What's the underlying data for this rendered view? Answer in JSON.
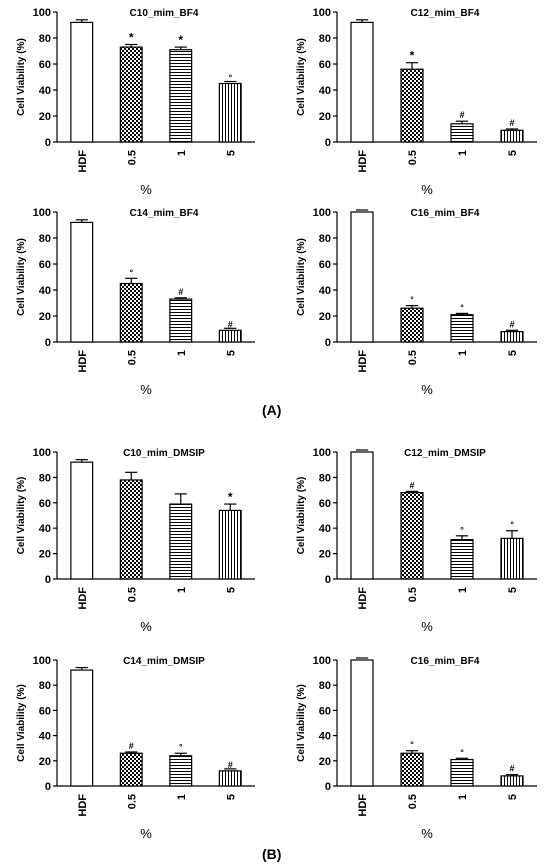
{
  "panel_labels": {
    "a": "(A)",
    "b": "(B)"
  },
  "chart_data": [
    {
      "type": "bar",
      "title": "C10_mim_BF4",
      "xlabel": "%",
      "ylabel": "Cell Viability (%)",
      "categories": [
        "HDF",
        "0.5",
        "1",
        "5"
      ],
      "values": [
        92,
        73,
        71,
        45
      ],
      "errors": [
        2,
        2,
        2,
        0
      ],
      "annotations": [
        "",
        "*",
        "*",
        "°"
      ],
      "ylim": [
        0,
        100
      ],
      "yticks": [
        0,
        20,
        40,
        60,
        80,
        100
      ],
      "patterns": [
        "none",
        "checker",
        "hlines",
        "vlines"
      ]
    },
    {
      "type": "bar",
      "title": "C12_mim_BF4",
      "xlabel": "%",
      "ylabel": "Cell Viability (%)",
      "categories": [
        "HDF",
        "0.5",
        "1",
        "5"
      ],
      "values": [
        92,
        56,
        14,
        9
      ],
      "errors": [
        2,
        5,
        2,
        1
      ],
      "annotations": [
        "",
        "*",
        "#",
        "#"
      ],
      "ylim": [
        0,
        100
      ],
      "yticks": [
        0,
        20,
        40,
        60,
        80,
        100
      ],
      "patterns": [
        "none",
        "checker",
        "hlines",
        "vlines"
      ]
    },
    {
      "type": "bar",
      "title": "C14_mim_BF4",
      "xlabel": "%",
      "ylabel": "Cell Viability (%)",
      "categories": [
        "HDF",
        "0.5",
        "1",
        "5"
      ],
      "values": [
        92,
        45,
        33,
        9
      ],
      "errors": [
        2,
        4,
        1,
        0
      ],
      "annotations": [
        "",
        "°",
        "#",
        "#"
      ],
      "ylim": [
        0,
        100
      ],
      "yticks": [
        0,
        20,
        40,
        60,
        80,
        100
      ],
      "patterns": [
        "none",
        "checker",
        "hlines",
        "vlines"
      ]
    },
    {
      "type": "bar",
      "title": "C16_mim_BF4",
      "xlabel": "%",
      "ylabel": "Cell Viability (%)",
      "categories": [
        "HDF",
        "0.5",
        "1",
        "5"
      ],
      "values": [
        100,
        26,
        21,
        8
      ],
      "errors": [
        0,
        2,
        1,
        1
      ],
      "annotations": [
        "",
        "°",
        "°",
        "#"
      ],
      "ylim": [
        0,
        100
      ],
      "yticks": [
        0,
        20,
        40,
        60,
        80,
        100
      ],
      "patterns": [
        "none",
        "checker",
        "hlines",
        "vlines"
      ]
    },
    {
      "type": "bar",
      "title": "C10_mim_DMSIP",
      "xlabel": "%",
      "ylabel": "Cell Viability (%)",
      "categories": [
        "HDF",
        "0.5",
        "1",
        "5"
      ],
      "values": [
        92,
        78,
        59,
        54
      ],
      "errors": [
        2,
        6,
        8,
        5
      ],
      "annotations": [
        "",
        "",
        "",
        "*"
      ],
      "ylim": [
        0,
        100
      ],
      "yticks": [
        0,
        20,
        40,
        60,
        80,
        100
      ],
      "patterns": [
        "none",
        "checker",
        "hlines",
        "vlines"
      ]
    },
    {
      "type": "bar",
      "title": "C12_mim_DMSIP",
      "xlabel": "%",
      "ylabel": "Cell Viability (%)",
      "categories": [
        "HDF",
        "0.5",
        "1",
        "5"
      ],
      "values": [
        100,
        68,
        31,
        32
      ],
      "errors": [
        0,
        1,
        3,
        6
      ],
      "annotations": [
        "",
        "#",
        "°",
        "°"
      ],
      "ylim": [
        0,
        100
      ],
      "yticks": [
        0,
        20,
        40,
        60,
        80,
        100
      ],
      "patterns": [
        "none",
        "checker",
        "hlines",
        "vlines"
      ]
    },
    {
      "type": "bar",
      "title": "C14_mim_DMSIP",
      "xlabel": "%",
      "ylabel": "Cell Viability (%)",
      "categories": [
        "HDF",
        "0.5",
        "1",
        "5"
      ],
      "values": [
        92,
        26,
        24,
        12
      ],
      "errors": [
        2,
        1,
        2,
        0
      ],
      "annotations": [
        "",
        "#",
        "°",
        "#"
      ],
      "ylim": [
        0,
        100
      ],
      "yticks": [
        0,
        20,
        40,
        60,
        80,
        100
      ],
      "patterns": [
        "none",
        "checker",
        "hlines",
        "vlines"
      ]
    },
    {
      "type": "bar",
      "title": "C16_mim_BF4",
      "xlabel": "%",
      "ylabel": "Cell Viability (%)",
      "categories": [
        "HDF",
        "0.5",
        "1",
        "5"
      ],
      "values": [
        100,
        26,
        21,
        8
      ],
      "errors": [
        0,
        2,
        1,
        1
      ],
      "annotations": [
        "",
        "°",
        "°",
        "#"
      ],
      "ylim": [
        0,
        100
      ],
      "yticks": [
        0,
        20,
        40,
        60,
        80,
        100
      ],
      "patterns": [
        "none",
        "checker",
        "hlines",
        "vlines"
      ]
    }
  ]
}
